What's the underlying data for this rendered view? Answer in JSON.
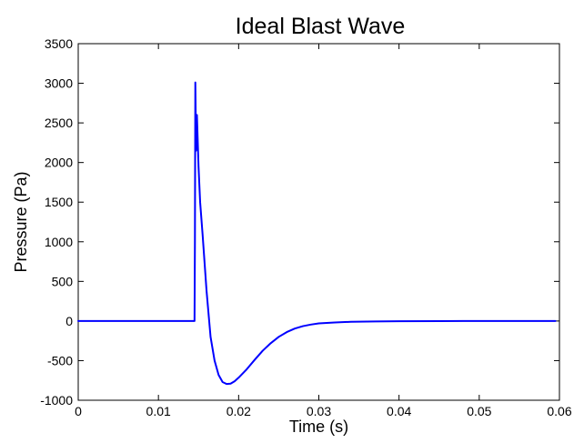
{
  "chart_data": {
    "type": "line",
    "title": "Ideal Blast Wave",
    "xlabel": "Time (s)",
    "ylabel": "Pressure (Pa)",
    "xlim": [
      0,
      0.06
    ],
    "ylim": [
      -1000,
      3500
    ],
    "x_ticks": [
      0,
      0.01,
      0.02,
      0.03,
      0.04,
      0.05,
      0.06
    ],
    "x_tick_labels": [
      "0",
      "0.01",
      "0.02",
      "0.03",
      "0.04",
      "0.05",
      "0.06"
    ],
    "y_ticks": [
      -1000,
      -500,
      0,
      500,
      1000,
      1500,
      2000,
      2500,
      3000,
      3500
    ],
    "y_tick_labels": [
      "-1000",
      "-500",
      "0",
      "500",
      "1000",
      "1500",
      "2000",
      "2500",
      "3000",
      "3500"
    ],
    "grid": false,
    "legend": "none",
    "series": [
      {
        "color": "#0000ff",
        "x": [
          0,
          0.0145,
          0.01455,
          0.0146,
          0.0147,
          0.0148,
          0.015,
          0.0152,
          0.0155,
          0.016,
          0.0165,
          0.017,
          0.0175,
          0.018,
          0.0185,
          0.019,
          0.0195,
          0.02,
          0.021,
          0.022,
          0.023,
          0.024,
          0.025,
          0.026,
          0.027,
          0.028,
          0.029,
          0.03,
          0.032,
          0.034,
          0.037,
          0.04,
          0.045,
          0.05,
          0.055,
          0.0595
        ],
        "y": [
          0,
          0,
          1000,
          3010,
          2150,
          2600,
          1950,
          1500,
          1100,
          380,
          -200,
          -500,
          -680,
          -770,
          -795,
          -790,
          -760,
          -715,
          -610,
          -490,
          -375,
          -280,
          -200,
          -140,
          -95,
          -65,
          -45,
          -30,
          -18,
          -10,
          -5,
          -3,
          -1,
          0,
          0,
          0
        ]
      }
    ]
  }
}
